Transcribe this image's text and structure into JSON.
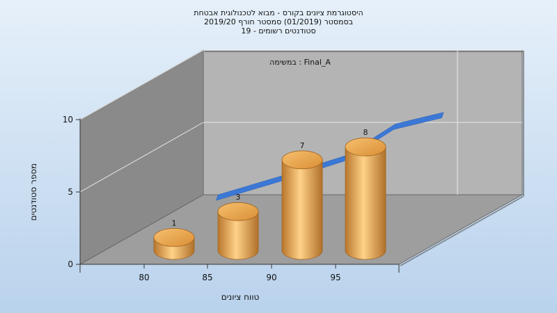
{
  "chart_data": {
    "type": "bar",
    "title_lines": [
      "היסטוגרמת ציונים בקורס - מבוא לטכנולוגית אבטחת",
      "בסמסטר  (01/2019)  סמסטר חורף 2019/20",
      "סטודנטים רשומים - 19"
    ],
    "annotation": "Final_A : במשימה",
    "xlabel": "טווח ציונים",
    "ylabel": "מספר סטודנטים",
    "x_ticks": [
      "80",
      "85",
      "90",
      "95"
    ],
    "y_ticks": [
      0,
      5,
      10
    ],
    "ylim": [
      0,
      10
    ],
    "categories": [
      "80",
      "85",
      "90",
      "95"
    ],
    "values": [
      1,
      3,
      7,
      8
    ],
    "value_labels": [
      "1",
      "3",
      "7",
      "8"
    ],
    "trend_values": [
      2.4,
      3.7,
      5.1,
      7.3,
      8.1
    ],
    "grid": true,
    "colors": {
      "bar": "#E0A04A",
      "trend": "#3B78D6",
      "back_wall": "#B4B4B4",
      "side_wall": "#8A8A8A",
      "floor": "#9E9E9E",
      "background_top": "#E6F0FA",
      "background_bottom": "#B9D2EC"
    }
  }
}
